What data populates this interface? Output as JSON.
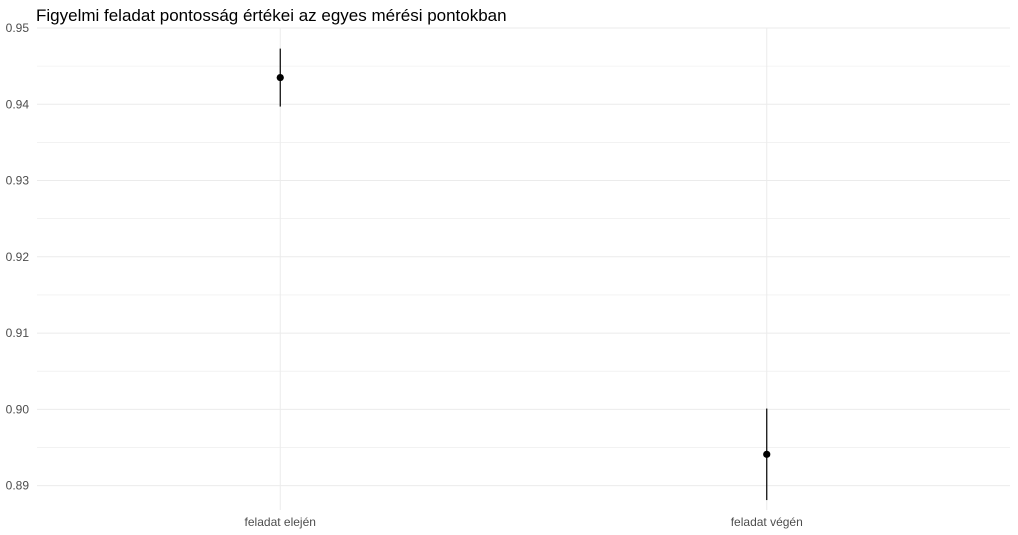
{
  "chart_data": {
    "type": "scatter",
    "title": "Figyelmi feladat pontosság értékei az egyes mérési pontokban",
    "xlabel": "",
    "ylabel": "",
    "categories": [
      "feladat elején",
      "feladat végén"
    ],
    "points": [
      {
        "category": "feladat elején",
        "value": 0.9435,
        "lower": 0.9397,
        "upper": 0.9473
      },
      {
        "category": "feladat végén",
        "value": 0.8941,
        "lower": 0.8881,
        "upper": 0.9001
      }
    ],
    "y_ticks": [
      "0.89",
      "0.90",
      "0.91",
      "0.92",
      "0.93",
      "0.94",
      "0.95"
    ],
    "ylim": [
      0.8868,
      0.95
    ],
    "grid": true,
    "colors": {
      "point": "#000000",
      "grid": "#ebebeb",
      "tick_text": "#4d4d4d"
    }
  }
}
